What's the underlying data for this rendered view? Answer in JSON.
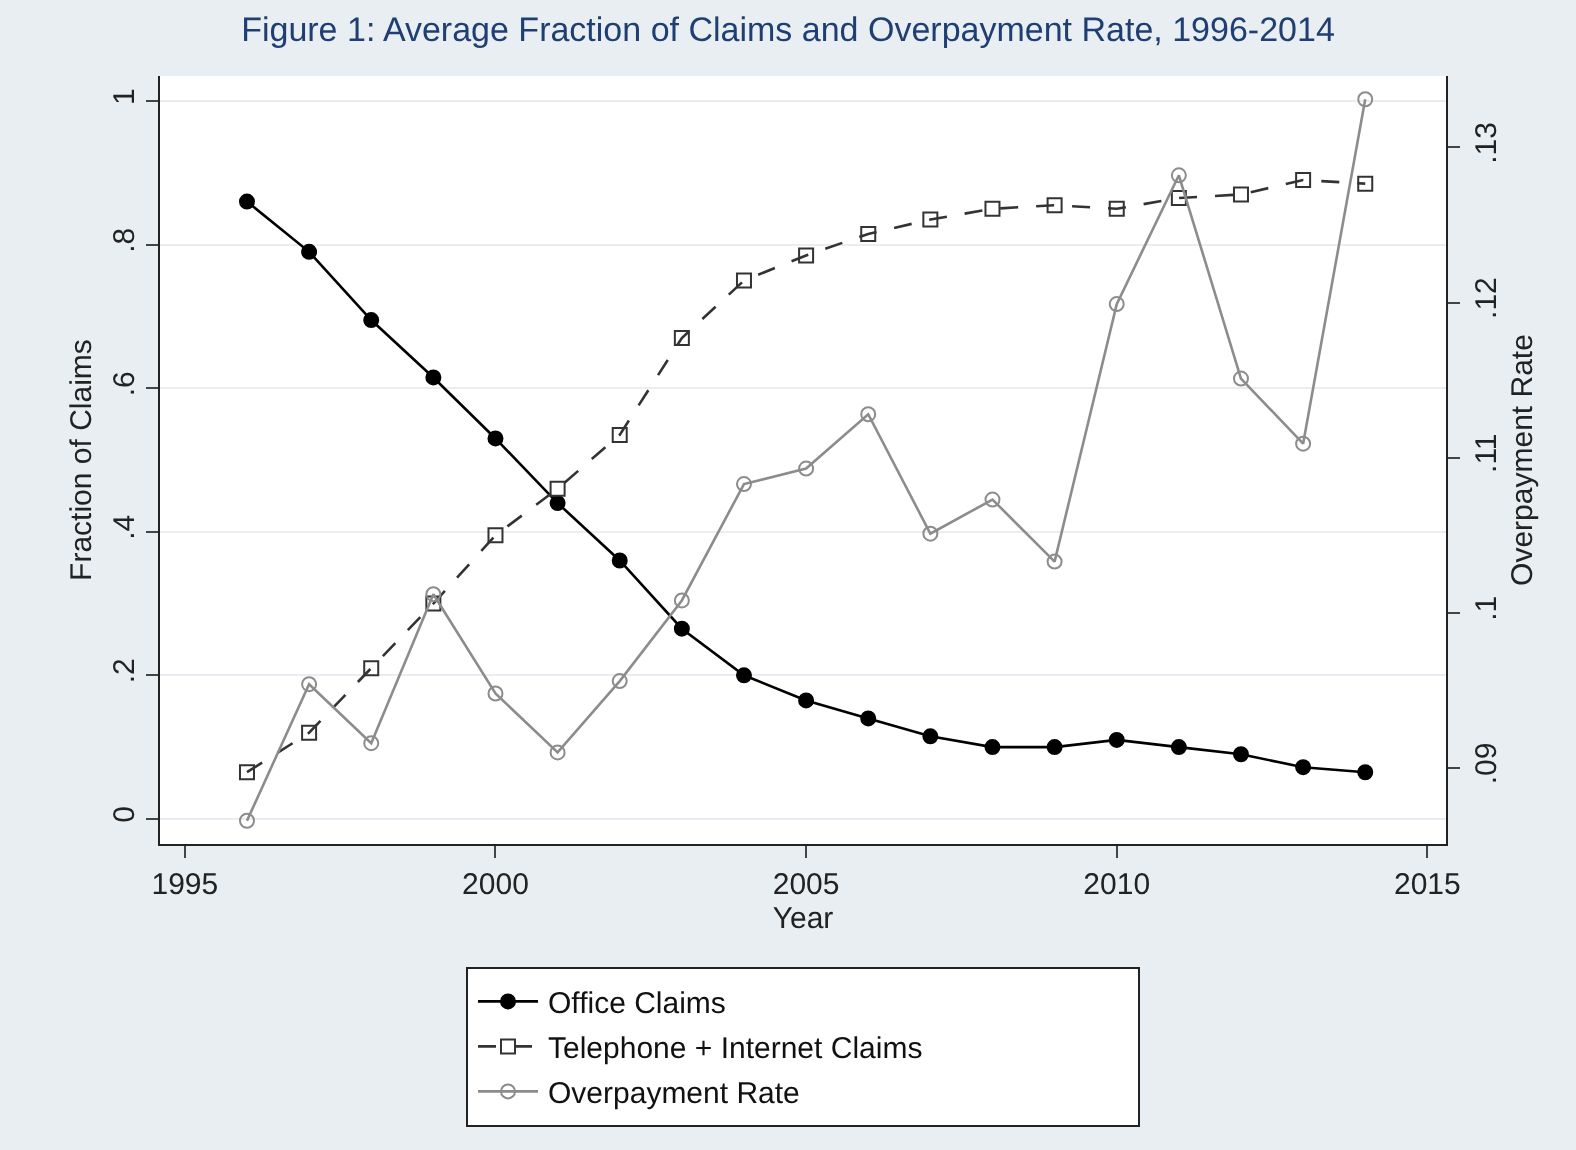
{
  "chart_data": {
    "type": "line",
    "title": "Figure 1: Average Fraction of Claims and Overpayment Rate, 1996-2014",
    "xlabel": "Year",
    "ylabel": "Fraction of Claims",
    "y2label": "Overpayment Rate",
    "x": [
      1996,
      1997,
      1998,
      1999,
      2000,
      2001,
      2002,
      2003,
      2004,
      2005,
      2006,
      2007,
      2008,
      2009,
      2010,
      2011,
      2012,
      2013,
      2014
    ],
    "series": [
      {
        "name": "Office Claims",
        "color": "#000000",
        "marker": "circle",
        "line_style": "solid",
        "values": [
          0.86,
          0.79,
          0.695,
          0.615,
          0.53,
          0.44,
          0.36,
          0.265,
          0.2,
          0.165,
          0.14,
          0.115,
          0.1,
          0.1,
          0.11,
          0.1,
          0.09,
          0.072,
          0.065
        ]
      },
      {
        "name": "Telephone + Internet Claims",
        "color": "#333333",
        "marker": "square",
        "line_style": "dashed",
        "values": [
          0.065,
          0.12,
          0.21,
          0.3,
          0.395,
          0.46,
          0.535,
          0.67,
          0.75,
          0.785,
          0.815,
          0.835,
          0.85,
          0.855,
          0.85,
          0.865,
          0.87,
          0.89,
          0.885
        ]
      },
      {
        "name": "Overpayment Rate",
        "color": "#8c8c8c",
        "marker": "circle",
        "line_style": "solid",
        "axis": "y2",
        "values": [
          0.0866,
          0.0954,
          0.0916,
          0.1012,
          0.0948,
          0.091,
          0.0956,
          0.1008,
          0.1083,
          0.1093,
          0.1128,
          0.1051,
          0.1073,
          0.1033,
          0.1199,
          0.1282,
          0.1151,
          0.1109,
          0.1331
        ]
      }
    ],
    "xlim": [
      1994.6,
      2015.3
    ],
    "xticks": [
      1995,
      2000,
      2005,
      2010,
      2015
    ],
    "ylim": [
      -0.035,
      1.035
    ],
    "yticks": [
      {
        "value": 0,
        "label": "0"
      },
      {
        "value": 0.2,
        "label": ".2"
      },
      {
        "value": 0.4,
        "label": ".4"
      },
      {
        "value": 0.6,
        "label": ".6"
      },
      {
        "value": 0.8,
        "label": ".8"
      },
      {
        "value": 1,
        "label": "1"
      }
    ],
    "y2lim": [
      0.0851,
      0.1346
    ],
    "y2ticks": [
      {
        "value": 0.09,
        "label": ".09"
      },
      {
        "value": 0.1,
        "label": ".1"
      },
      {
        "value": 0.11,
        "label": ".11"
      },
      {
        "value": 0.12,
        "label": ".12"
      },
      {
        "value": 0.13,
        "label": ".13"
      }
    ],
    "grid": "y",
    "legend": "bottom"
  }
}
